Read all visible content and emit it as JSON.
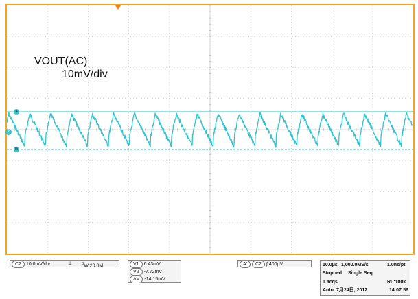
{
  "screen": {
    "label_main": "VOUT(AC)",
    "label_scale": "10mV/div",
    "ch_marker": "2",
    "cursor_a_marker": "a",
    "cursor_b_marker": "b"
  },
  "colors": {
    "frame": "#f5a51c",
    "trace": "#2fc4cf",
    "grid": "#b4b4b4",
    "cursor": "#2fc4cf"
  },
  "bottom_panel": {
    "channel_box": {
      "ch_pill": "C2",
      "scale": "10.0mV/div",
      "coupling": "⊥",
      "bw": "B",
      "bw_value": "W:20.0M"
    },
    "cursor_box": {
      "v1_pill": "V1",
      "v1_value": "6.43mV",
      "v2_pill": "V2",
      "v2_value": "-7.72mV",
      "dv_pill": "ΔV",
      "dv_value": "-14.15mV"
    },
    "trigger_box": {
      "a_pill": "A'",
      "ch_pill": "C2",
      "slope": "∫",
      "level": "400μV"
    },
    "timebase_box": {
      "timebase": "10.0μs",
      "sample_rate": "1,000.0MS/s",
      "resolution": "1.0ns/pt",
      "state": "Stopped",
      "mode": "Single Seq",
      "acqs": "1 acqs",
      "record_length": "RL:100k",
      "trigger_mode": "Auto",
      "date": "7月24日, 2012",
      "time": "14:07:56"
    }
  }
}
